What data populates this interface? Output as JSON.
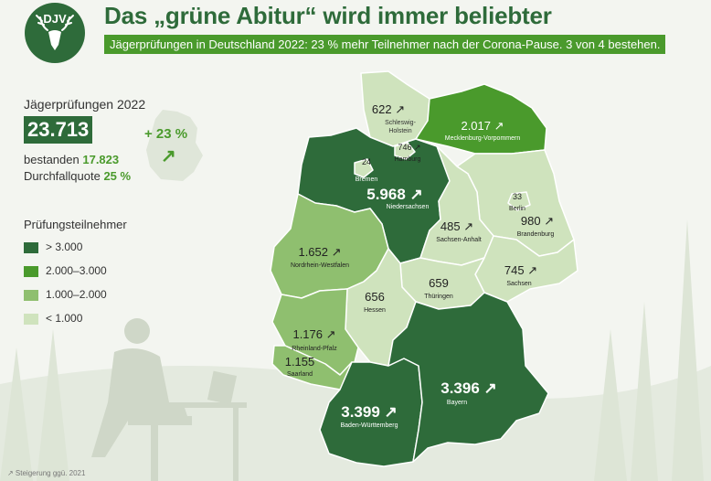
{
  "header": {
    "logo_text": "DJV",
    "title": "Das „grüne Abitur“ wird immer beliebter",
    "subtitle": "Jägerprüfungen in Deutschland 2022: 23 % mehr Teilnehmer nach der Corona-Pause. 3 von 4 bestehen."
  },
  "stats": {
    "label": "Jägerprüfungen 2022",
    "total": "23.713",
    "passed_label": "bestanden",
    "passed_value": "17.823",
    "fail_label": "Durchfallquote",
    "fail_value": "25 %",
    "change": "+ 23 %",
    "change_arrow": "↗"
  },
  "legend": {
    "title": "Prüfungsteilnehmer",
    "items": [
      {
        "label": "> 3.000",
        "color": "#2e6b3a"
      },
      {
        "label": "2.000–3.000",
        "color": "#4a9a2c"
      },
      {
        "label": "1.000–2.000",
        "color": "#8fbf6f"
      },
      {
        "label": "< 1.000",
        "color": "#cfe3bd"
      }
    ]
  },
  "states": [
    {
      "name": "Schleswig-Holstein",
      "value": "622 ↗",
      "color": "#cfe3bd"
    },
    {
      "name": "Mecklenburg-Vorpommern",
      "value": "2.017 ↗",
      "color": "#4a9a2c"
    },
    {
      "name": "Hamburg",
      "value": "746 ↗",
      "color": "#cfe3bd"
    },
    {
      "name": "Bremen",
      "value": "24",
      "color": "#cfe3bd"
    },
    {
      "name": "Niedersachsen",
      "value": "5.968 ↗",
      "color": "#2e6b3a"
    },
    {
      "name": "Berlin",
      "value": "33",
      "color": "#cfe3bd"
    },
    {
      "name": "Brandenburg",
      "value": "980 ↗",
      "color": "#cfe3bd"
    },
    {
      "name": "Sachsen-Anhalt",
      "value": "485 ↗",
      "color": "#cfe3bd"
    },
    {
      "name": "Nordrhein-Westfalen",
      "value": "1.652 ↗",
      "color": "#8fbf6f"
    },
    {
      "name": "Sachsen",
      "value": "745 ↗",
      "color": "#cfe3bd"
    },
    {
      "name": "Hessen",
      "value": "656",
      "color": "#cfe3bd"
    },
    {
      "name": "Thüringen",
      "value": "659",
      "color": "#cfe3bd"
    },
    {
      "name": "Rheinland-Pfalz",
      "value": "1.176 ↗",
      "color": "#8fbf6f"
    },
    {
      "name": "Saarland",
      "value": "1.155",
      "color": "#8fbf6f"
    },
    {
      "name": "Bayern",
      "value": "3.396 ↗",
      "color": "#2e6b3a"
    },
    {
      "name": "Baden-Württemberg",
      "value": "3.399 ↗",
      "color": "#2e6b3a"
    }
  ],
  "footnote": "↗ Steigerung ggü. 2021"
}
